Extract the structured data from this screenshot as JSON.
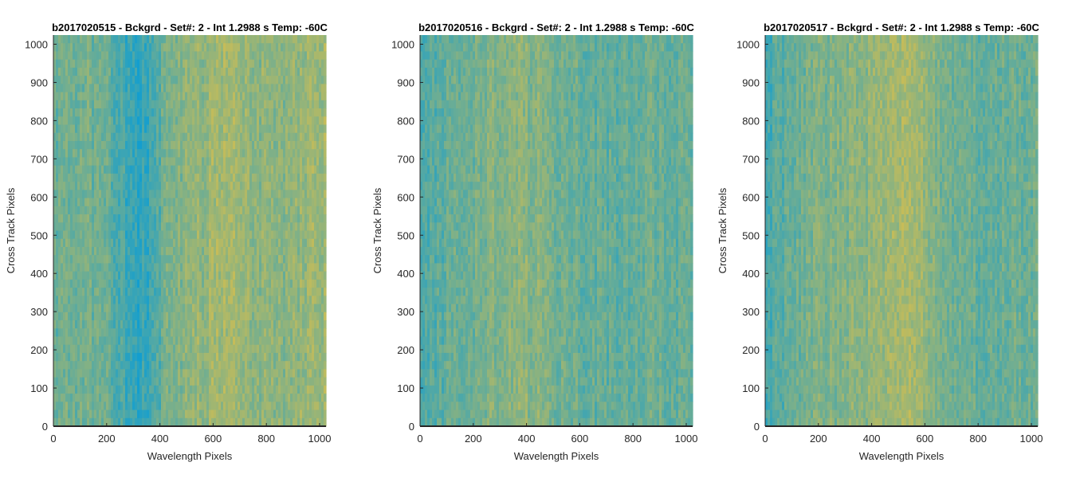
{
  "chart_data": [
    {
      "type": "heatmap",
      "title": "b2017020515 - Bckgrd - Set#: 2 - Int 1.2988 s Temp: -60C",
      "xlabel": "Wavelength Pixels",
      "ylabel": "Cross Track Pixels",
      "xlim": [
        0,
        1024
      ],
      "ylim": [
        0,
        1024
      ],
      "xticks": [
        0,
        200,
        400,
        600,
        800,
        1000
      ],
      "yticks": [
        0,
        100,
        200,
        300,
        400,
        500,
        600,
        700,
        800,
        900,
        1000
      ],
      "colormap_low": "#139ecf",
      "colormap_high": "#d6bf4e",
      "column_profile": {
        "x": [
          0,
          64,
          128,
          192,
          256,
          288,
          320,
          352,
          384,
          416,
          448,
          512,
          576,
          640,
          704,
          768,
          832,
          896,
          960,
          1024
        ],
        "level": [
          0.46,
          0.5,
          0.5,
          0.46,
          0.3,
          0.22,
          0.16,
          0.2,
          0.3,
          0.46,
          0.54,
          0.6,
          0.68,
          0.74,
          0.7,
          0.64,
          0.6,
          0.62,
          0.7,
          0.74
        ]
      }
    },
    {
      "type": "heatmap",
      "title": "b2017020516 - Bckgrd - Set#: 2 - Int 1.2988 s Temp: -60C",
      "xlabel": "Wavelength Pixels",
      "ylabel": "Cross Track Pixels",
      "xlim": [
        0,
        1024
      ],
      "ylim": [
        0,
        1024
      ],
      "xticks": [
        0,
        200,
        400,
        600,
        800,
        1000
      ],
      "yticks": [
        0,
        100,
        200,
        300,
        400,
        500,
        600,
        700,
        800,
        900,
        1000
      ],
      "colormap_low": "#139ecf",
      "colormap_high": "#d6bf4e",
      "column_profile": {
        "x": [
          0,
          64,
          128,
          192,
          256,
          320,
          384,
          448,
          512,
          576,
          640,
          704,
          768,
          832,
          896,
          960,
          1024
        ],
        "level": [
          0.26,
          0.36,
          0.44,
          0.5,
          0.54,
          0.58,
          0.62,
          0.58,
          0.5,
          0.46,
          0.44,
          0.42,
          0.42,
          0.44,
          0.46,
          0.44,
          0.42
        ]
      }
    },
    {
      "type": "heatmap",
      "title": "b2017020517 - Bckgrd - Set#: 2 - Int 1.2988 s Temp: -60C",
      "xlabel": "Wavelength Pixels",
      "ylabel": "Cross Track Pixels",
      "xlim": [
        0,
        1024
      ],
      "ylim": [
        0,
        1024
      ],
      "xticks": [
        0,
        200,
        400,
        600,
        800,
        1000
      ],
      "yticks": [
        0,
        100,
        200,
        300,
        400,
        500,
        600,
        700,
        800,
        900,
        1000
      ],
      "colormap_low": "#139ecf",
      "colormap_high": "#d6bf4e",
      "column_profile": {
        "x": [
          0,
          64,
          128,
          192,
          256,
          320,
          384,
          448,
          512,
          544,
          576,
          640,
          704,
          768,
          832,
          896,
          960,
          1024
        ],
        "level": [
          0.28,
          0.38,
          0.46,
          0.52,
          0.56,
          0.6,
          0.64,
          0.7,
          0.76,
          0.78,
          0.74,
          0.58,
          0.48,
          0.46,
          0.44,
          0.44,
          0.46,
          0.46
        ]
      }
    }
  ]
}
